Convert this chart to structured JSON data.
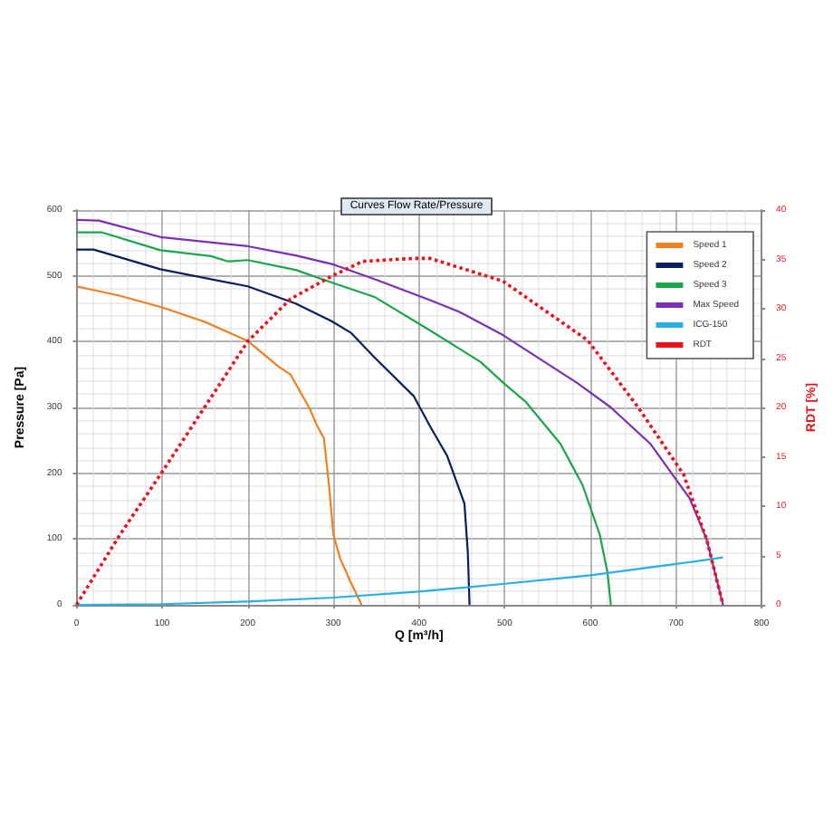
{
  "chart_data": {
    "type": "line",
    "title": "Curves Flow Rate/Pressure",
    "xlabel": "Q [m³/h]",
    "ylabel": "Pressure [Pa]",
    "y2label": "RDT [%]",
    "xlim": [
      0,
      800
    ],
    "xticks": [
      0,
      100,
      200,
      300,
      400,
      500,
      600,
      700,
      800
    ],
    "ylim": [
      0,
      600
    ],
    "yticks": [
      0,
      100,
      200,
      300,
      400,
      500,
      600
    ],
    "y2lim": [
      0,
      40
    ],
    "y2ticks": [
      0,
      5,
      10,
      15,
      20,
      25,
      30,
      35,
      40
    ],
    "grid": true,
    "legend": "top right",
    "marker": "none",
    "series": [
      {
        "name": "Speed 1",
        "color": "#f07f1f",
        "x": [
          0,
          50,
          100,
          150,
          200,
          236,
          250,
          272,
          280,
          289,
          295,
          300,
          308,
          320,
          333
        ],
        "values": [
          484,
          470,
          452,
          430,
          401,
          362,
          350,
          299,
          275,
          253,
          180,
          107,
          70,
          35,
          0
        ]
      },
      {
        "name": "Speed 2",
        "color": "#0a1f5c",
        "x": [
          0,
          20,
          98,
          200,
          256,
          298,
          321,
          348,
          394,
          413,
          433,
          453,
          457,
          459
        ],
        "values": [
          540,
          540,
          510,
          484,
          458,
          431,
          413,
          376,
          317,
          271,
          226,
          154,
          80,
          0
        ]
      },
      {
        "name": "Speed 3",
        "color": "#1aa64a",
        "x": [
          0,
          30,
          98,
          157,
          177,
          200,
          256,
          298,
          348,
          413,
          472,
          498,
          525,
          565,
          591,
          611,
          620,
          624
        ],
        "values": [
          566,
          566,
          539,
          530,
          522,
          524,
          509,
          490,
          468,
          417,
          369,
          338,
          308,
          245,
          182,
          107,
          50,
          0
        ]
      },
      {
        "name": "Max Speed",
        "color": "#7a2fb5",
        "x": [
          0,
          26,
          98,
          200,
          256,
          298,
          348,
          413,
          446,
          498,
          585,
          624,
          670,
          716,
          736,
          755
        ],
        "values": [
          585,
          584,
          559,
          545,
          531,
          518,
          495,
          463,
          446,
          410,
          337,
          300,
          245,
          162,
          99,
          0
        ]
      },
      {
        "name": "ICG-150",
        "color": "#29aee6",
        "x": [
          0,
          100,
          200,
          300,
          400,
          500,
          600,
          700,
          755
        ],
        "values": [
          0,
          1,
          5,
          11,
          20,
          32,
          45,
          62,
          72
        ]
      },
      {
        "name": "RDT",
        "color": "#e8131b",
        "axis": "y2",
        "line_style": "dotted",
        "x": [
          0,
          50,
          98,
          151,
          200,
          250,
          298,
          334,
          393,
          413,
          498,
          597,
          656,
          709,
          736,
          755
        ],
        "values": [
          0,
          7,
          13.2,
          20.2,
          26.7,
          31,
          33.3,
          34.8,
          35.1,
          35.1,
          32.8,
          26.8,
          20,
          13.2,
          6.6,
          0
        ]
      }
    ]
  }
}
